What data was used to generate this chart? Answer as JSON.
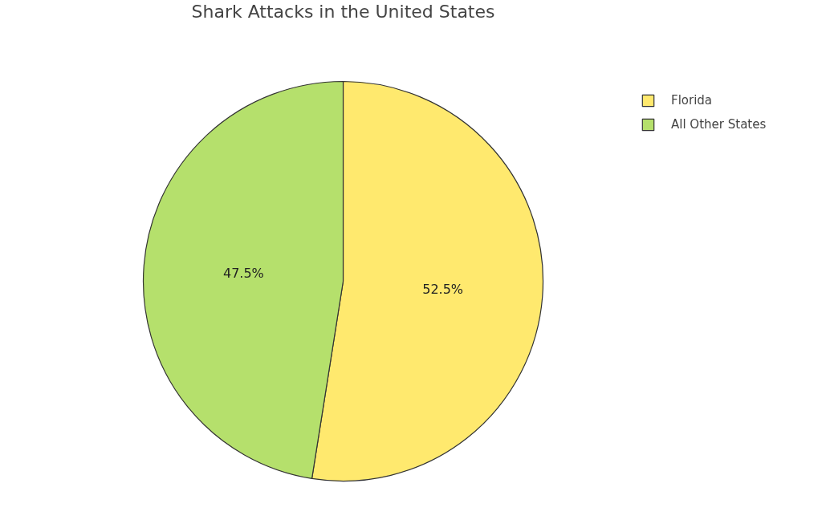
{
  "chart_data": {
    "type": "pie",
    "title": "Shark Attacks in the United States",
    "categories": [
      "Florida",
      "All Other States"
    ],
    "values": [
      52.5,
      47.5
    ],
    "colors": [
      "#ffe96e",
      "#b5e06c"
    ],
    "value_labels": [
      "52.5%",
      "47.5%"
    ],
    "legend": "top right"
  }
}
